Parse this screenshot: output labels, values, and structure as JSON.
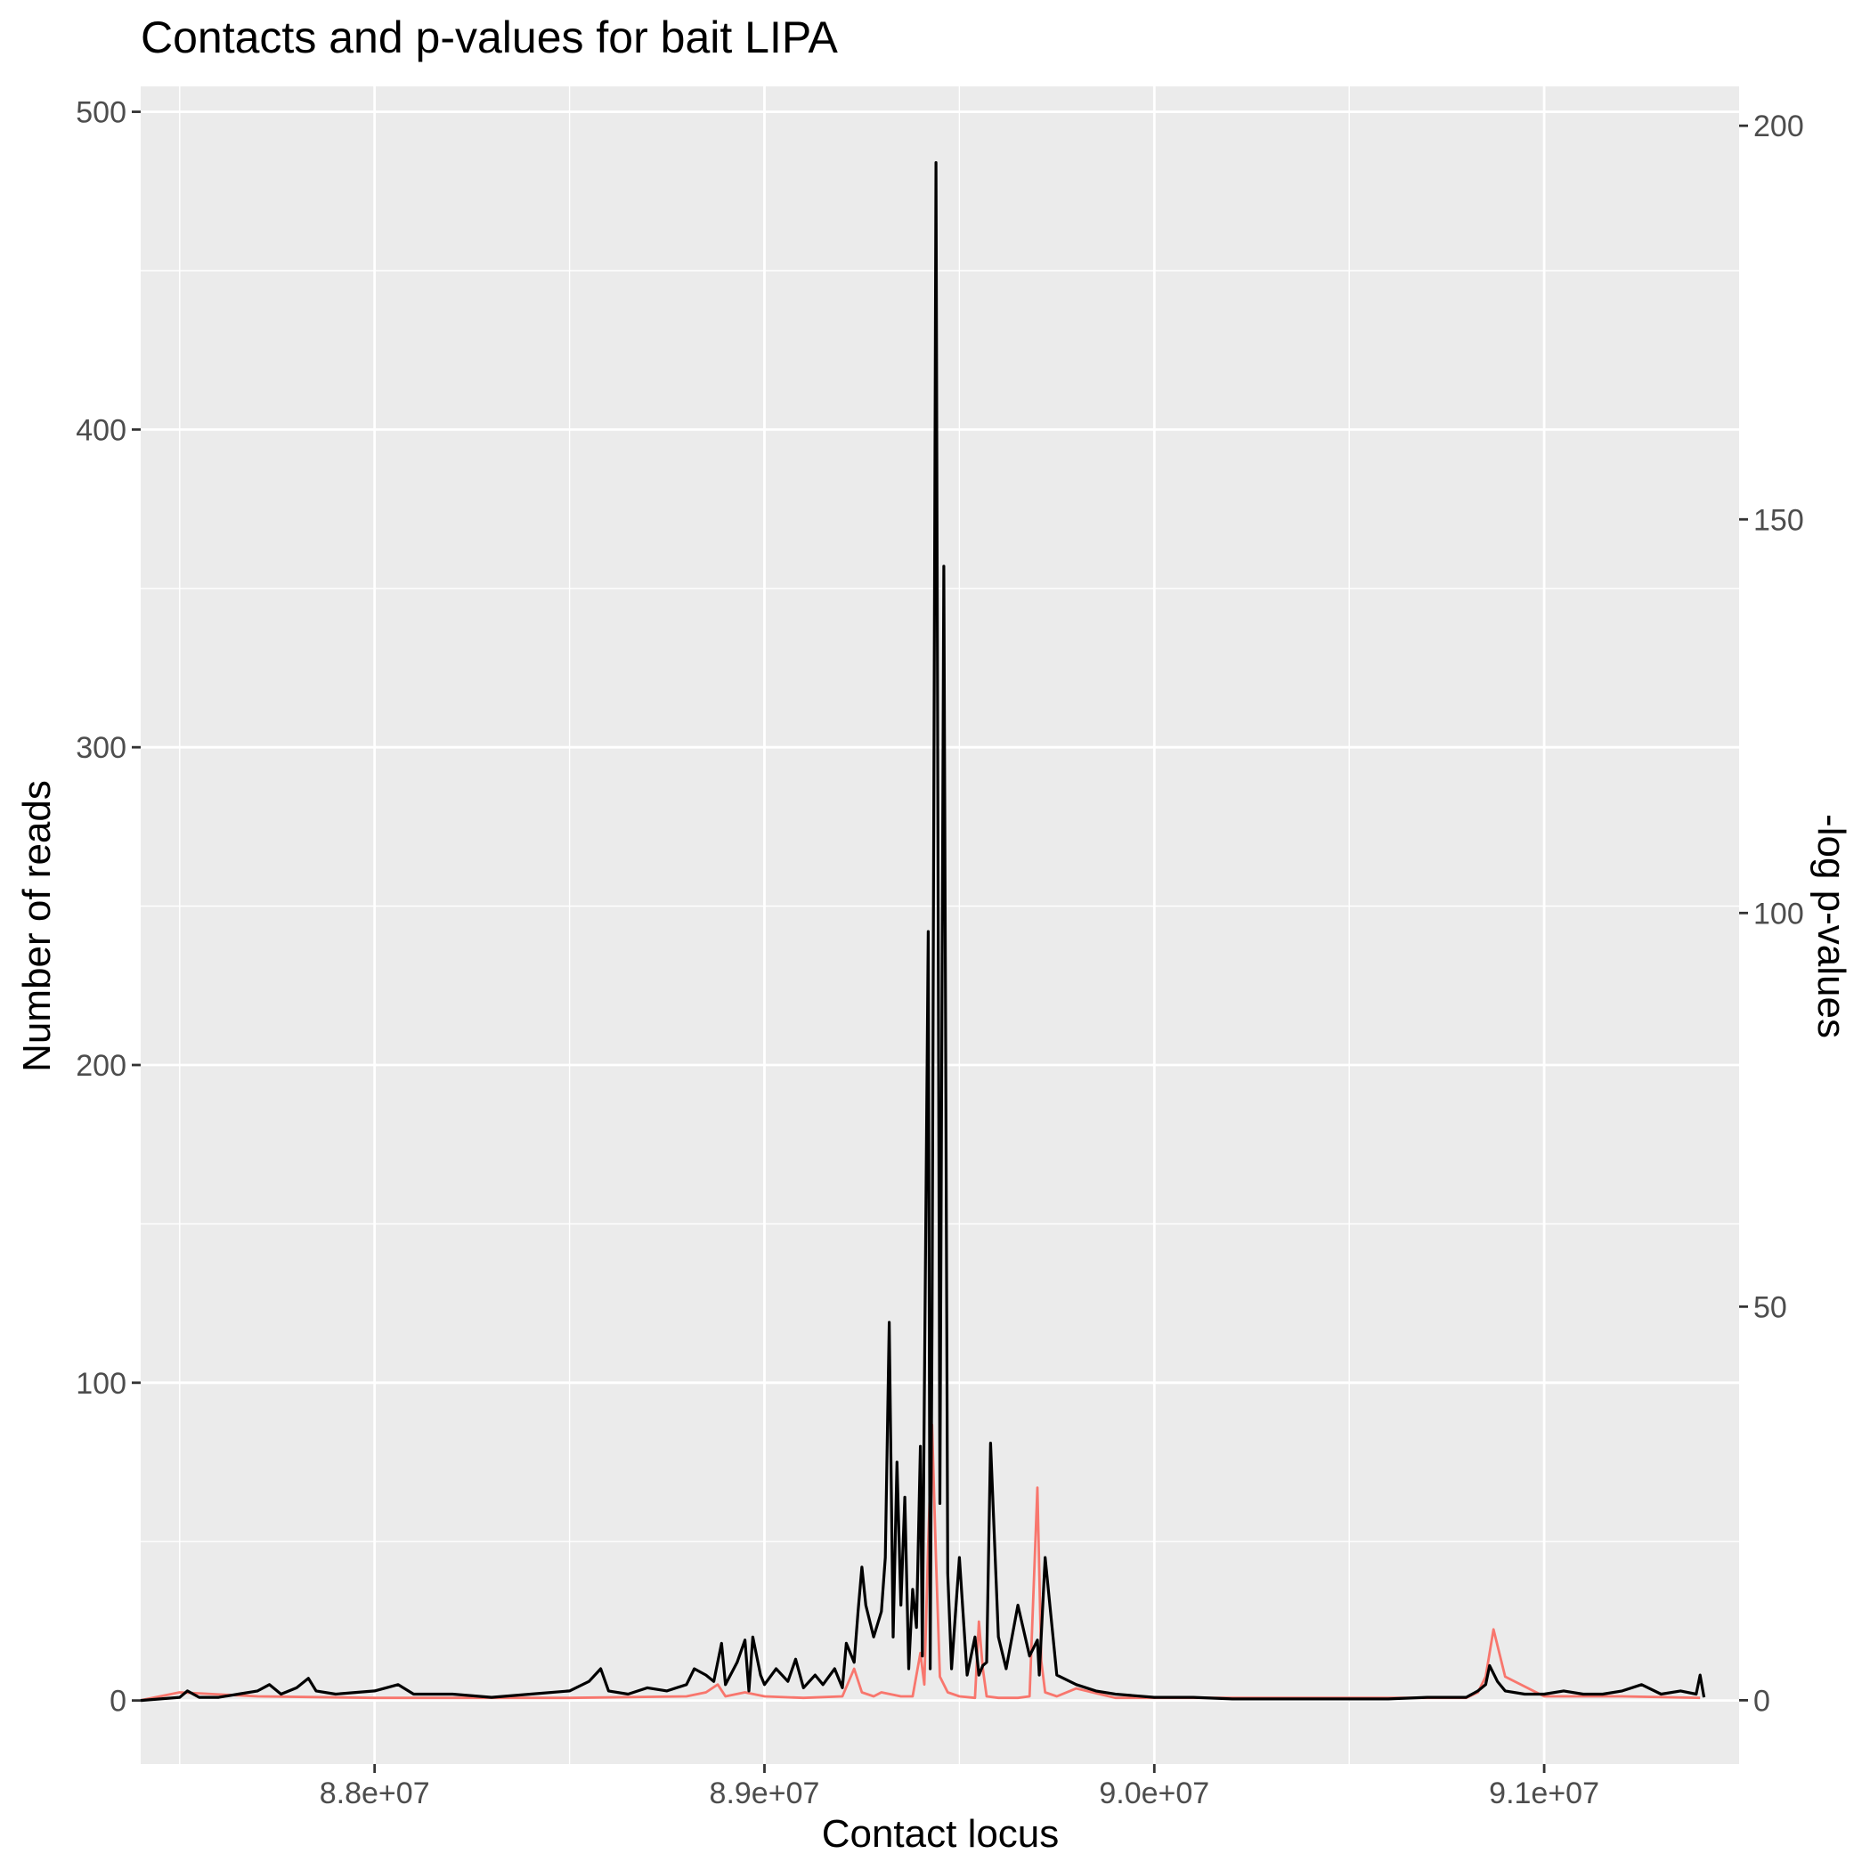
{
  "chart_data": {
    "type": "line",
    "title": "Contacts and p-values for bait LIPA",
    "xlabel": "Contact locus",
    "ylabel": "Number of reads",
    "ylabel_right": "-log p-values",
    "xlim": [
      87400000,
      91500000
    ],
    "ylim": [
      -20,
      508
    ],
    "ylim_right": [
      -8.1,
      205.0
    ],
    "x_ticks": [
      {
        "value": 88000000,
        "label": "8.8e+07"
      },
      {
        "value": 89000000,
        "label": "8.9e+07"
      },
      {
        "value": 90000000,
        "label": "9.0e+07"
      },
      {
        "value": 91000000,
        "label": "9.1e+07"
      }
    ],
    "y_ticks": [
      {
        "value": 0,
        "label": "0"
      },
      {
        "value": 100,
        "label": "100"
      },
      {
        "value": 200,
        "label": "200"
      },
      {
        "value": 300,
        "label": "300"
      },
      {
        "value": 400,
        "label": "400"
      },
      {
        "value": 500,
        "label": "500"
      }
    ],
    "y_ticks_right": [
      {
        "value": 0,
        "label": "0"
      },
      {
        "value": 50,
        "label": "50"
      },
      {
        "value": 100,
        "label": "100"
      },
      {
        "value": 150,
        "label": "150"
      },
      {
        "value": 200,
        "label": "200"
      }
    ],
    "grid": true,
    "series": [
      {
        "axis": "right",
        "color": "#f8766d",
        "x": [
          87400000,
          87500000,
          87700000,
          88000000,
          88500000,
          88800000,
          88850000,
          88880000,
          88900000,
          88950000,
          89000000,
          89100000,
          89200000,
          89230000,
          89250000,
          89280000,
          89300000,
          89350000,
          89380000,
          89400000,
          89410000,
          89420000,
          89430000,
          89440000,
          89450000,
          89470000,
          89500000,
          89540000,
          89550000,
          89560000,
          89570000,
          89600000,
          89650000,
          89680000,
          89700000,
          89710000,
          89720000,
          89750000,
          89800000,
          89900000,
          90000000,
          90500000,
          90800000,
          90830000,
          90850000,
          90870000,
          90900000,
          91000000,
          91200000,
          91400000
        ],
        "y": [
          0,
          1,
          0.5,
          0.3,
          0.3,
          0.5,
          1,
          2,
          0.5,
          1,
          0.5,
          0.3,
          0.5,
          4,
          1,
          0.5,
          1,
          0.5,
          0.5,
          6,
          2,
          20,
          35,
          18,
          3,
          1,
          0.5,
          0.3,
          10,
          4,
          0.5,
          0.3,
          0.3,
          0.5,
          27,
          5,
          1,
          0.5,
          1.5,
          0.3,
          0.3,
          0.3,
          0.3,
          1,
          3,
          9,
          3,
          0.5,
          0.5,
          0.3
        ]
      },
      {
        "axis": "left",
        "color": "#000000",
        "x": [
          87400000,
          87500000,
          87520000,
          87550000,
          87600000,
          87650000,
          87700000,
          87730000,
          87760000,
          87800000,
          87830000,
          87850000,
          87900000,
          88000000,
          88060000,
          88100000,
          88200000,
          88300000,
          88400000,
          88500000,
          88550000,
          88580000,
          88600000,
          88650000,
          88700000,
          88750000,
          88800000,
          88820000,
          88850000,
          88870000,
          88890000,
          88900000,
          88930000,
          88950000,
          88960000,
          88970000,
          88990000,
          89000000,
          89030000,
          89060000,
          89080000,
          89100000,
          89130000,
          89150000,
          89180000,
          89200000,
          89210000,
          89230000,
          89240000,
          89250000,
          89260000,
          89280000,
          89300000,
          89310000,
          89320000,
          89330000,
          89340000,
          89350000,
          89360000,
          89370000,
          89380000,
          89390000,
          89400000,
          89405000,
          89410000,
          89420000,
          89425000,
          89430000,
          89440000,
          89450000,
          89460000,
          89470000,
          89480000,
          89500000,
          89520000,
          89540000,
          89550000,
          89560000,
          89570000,
          89580000,
          89600000,
          89620000,
          89650000,
          89680000,
          89700000,
          89705000,
          89720000,
          89750000,
          89800000,
          89850000,
          89900000,
          90000000,
          90100000,
          90200000,
          90300000,
          90400000,
          90500000,
          90600000,
          90700000,
          90800000,
          90830000,
          90850000,
          90860000,
          90880000,
          90900000,
          90950000,
          91000000,
          91050000,
          91100000,
          91150000,
          91200000,
          91250000,
          91300000,
          91350000,
          91390000,
          91400000,
          91410000
        ],
        "y": [
          0,
          1,
          3,
          1,
          1,
          2,
          3,
          5,
          2,
          4,
          7,
          3,
          2,
          3,
          5,
          2,
          2,
          1,
          2,
          3,
          6,
          10,
          3,
          2,
          4,
          3,
          5,
          10,
          8,
          6,
          18,
          5,
          12,
          19,
          3,
          20,
          8,
          5,
          10,
          6,
          13,
          4,
          8,
          5,
          10,
          4,
          18,
          12,
          28,
          42,
          30,
          20,
          28,
          45,
          119,
          20,
          75,
          30,
          64,
          10,
          35,
          23,
          80,
          14,
          95,
          242,
          10,
          120,
          484,
          62,
          357,
          40,
          10,
          45,
          8,
          20,
          8,
          11,
          12,
          81,
          20,
          10,
          30,
          14,
          19,
          8,
          45,
          8,
          5,
          3,
          2,
          1,
          1,
          0.5,
          0.5,
          0.5,
          0.5,
          0.5,
          1,
          1,
          3,
          5,
          11,
          6,
          3,
          2,
          2,
          3,
          2,
          2,
          3,
          5,
          2,
          3,
          2,
          8,
          1
        ]
      }
    ]
  }
}
